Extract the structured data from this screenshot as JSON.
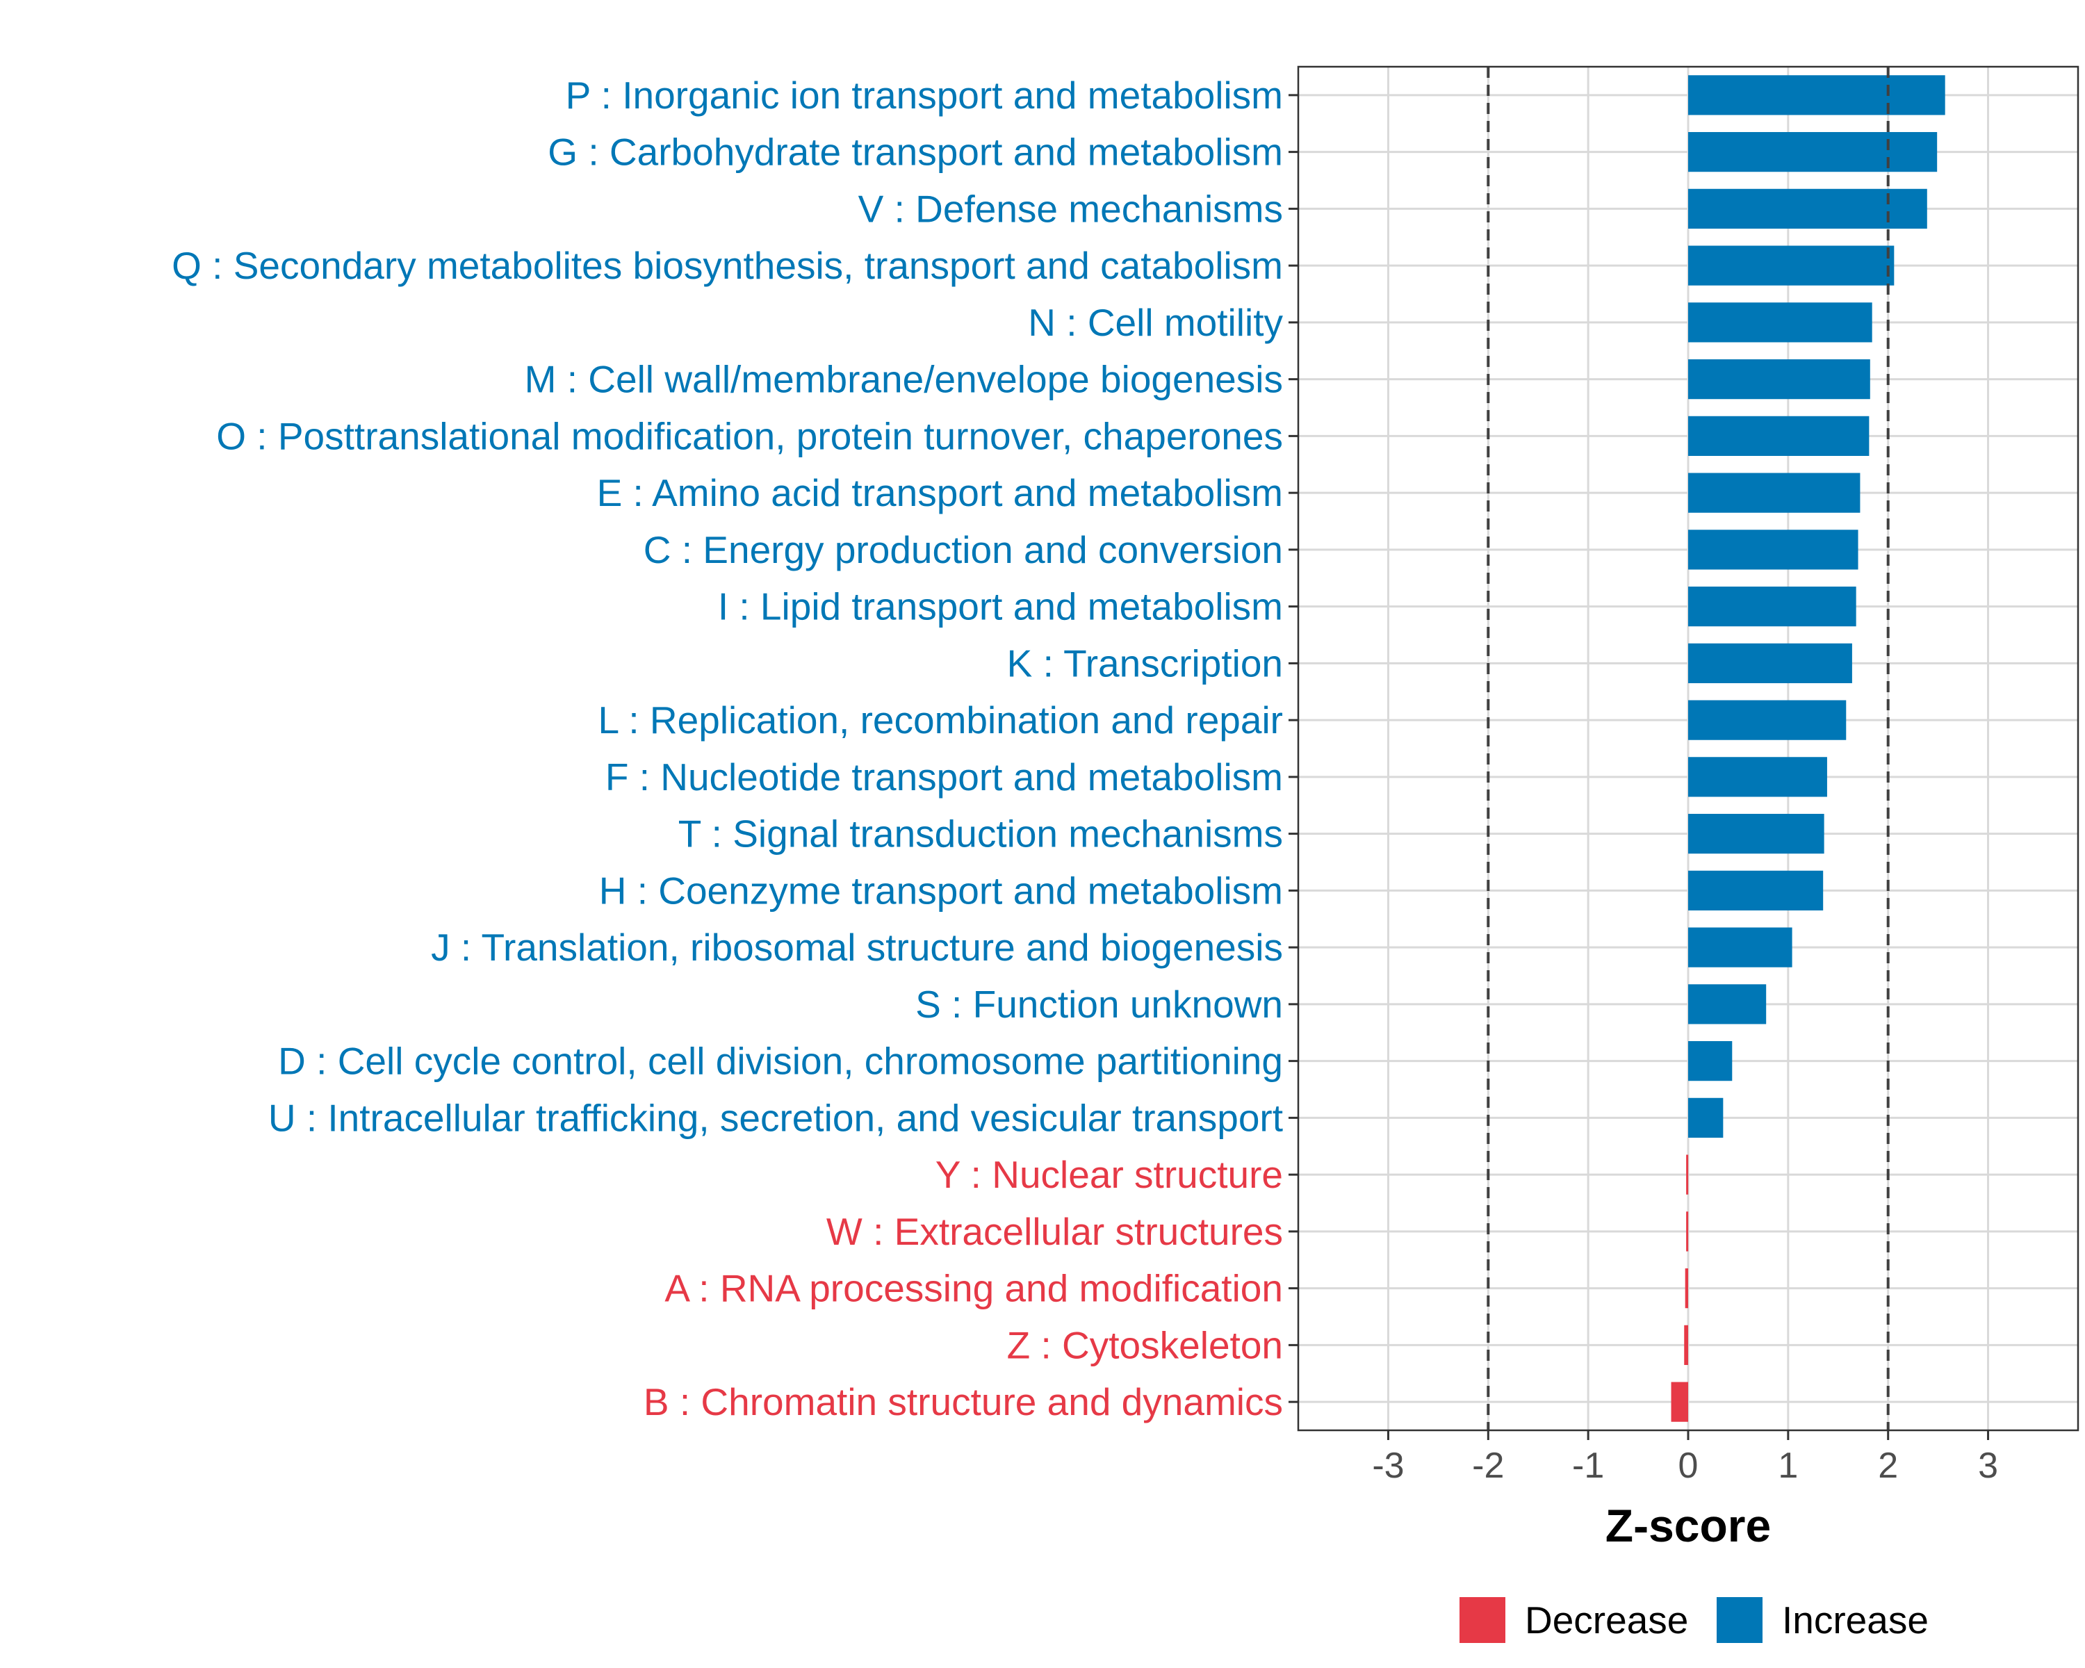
{
  "chart_data": {
    "type": "bar",
    "orientation": "horizontal",
    "xlabel": "Z-score",
    "xlim": [
      -3.9,
      3.9
    ],
    "xticks": [
      -3,
      -2,
      -1,
      0,
      1,
      2,
      3
    ],
    "xtick_labels": [
      "-3",
      "-2",
      "-1",
      "0",
      "1",
      "2",
      "3"
    ],
    "reference_lines": [
      -2,
      2
    ],
    "grid": true,
    "legend_position": "bottom",
    "colors": {
      "Decrease": "#e63946",
      "Increase": "#0077b6"
    },
    "legend": [
      {
        "label": "Decrease",
        "color": "#e63946"
      },
      {
        "label": "Increase",
        "color": "#0077b6"
      }
    ],
    "categories": [
      "P : Inorganic ion transport and metabolism",
      "G : Carbohydrate transport and metabolism",
      "V : Defense mechanisms",
      "Q : Secondary metabolites biosynthesis, transport and catabolism",
      "N : Cell motility",
      "M : Cell wall/membrane/envelope biogenesis",
      "O : Posttranslational modification, protein turnover, chaperones",
      "E : Amino acid transport and metabolism",
      "C : Energy production and conversion",
      "I : Lipid transport and metabolism",
      "K : Transcription",
      "L : Replication, recombination and repair",
      "F : Nucleotide transport and metabolism",
      "T : Signal transduction mechanisms",
      "H : Coenzyme transport and metabolism",
      "J : Translation, ribosomal structure and biogenesis",
      "S : Function unknown",
      "D : Cell cycle control, cell division, chromosome partitioning",
      "U : Intracellular trafficking, secretion, and vesicular transport",
      "Y : Nuclear structure",
      "W : Extracellular structures",
      "A : RNA processing and modification",
      "Z : Cytoskeleton",
      "B : Chromatin structure and dynamics"
    ],
    "values": [
      2.57,
      2.49,
      2.39,
      2.06,
      1.84,
      1.82,
      1.81,
      1.72,
      1.7,
      1.68,
      1.64,
      1.58,
      1.39,
      1.36,
      1.35,
      1.04,
      0.78,
      0.44,
      0.35,
      -0.02,
      -0.02,
      -0.03,
      -0.04,
      -0.17
    ],
    "direction": [
      "Increase",
      "Increase",
      "Increase",
      "Increase",
      "Increase",
      "Increase",
      "Increase",
      "Increase",
      "Increase",
      "Increase",
      "Increase",
      "Increase",
      "Increase",
      "Increase",
      "Increase",
      "Increase",
      "Increase",
      "Increase",
      "Increase",
      "Decrease",
      "Decrease",
      "Decrease",
      "Decrease",
      "Decrease"
    ]
  }
}
